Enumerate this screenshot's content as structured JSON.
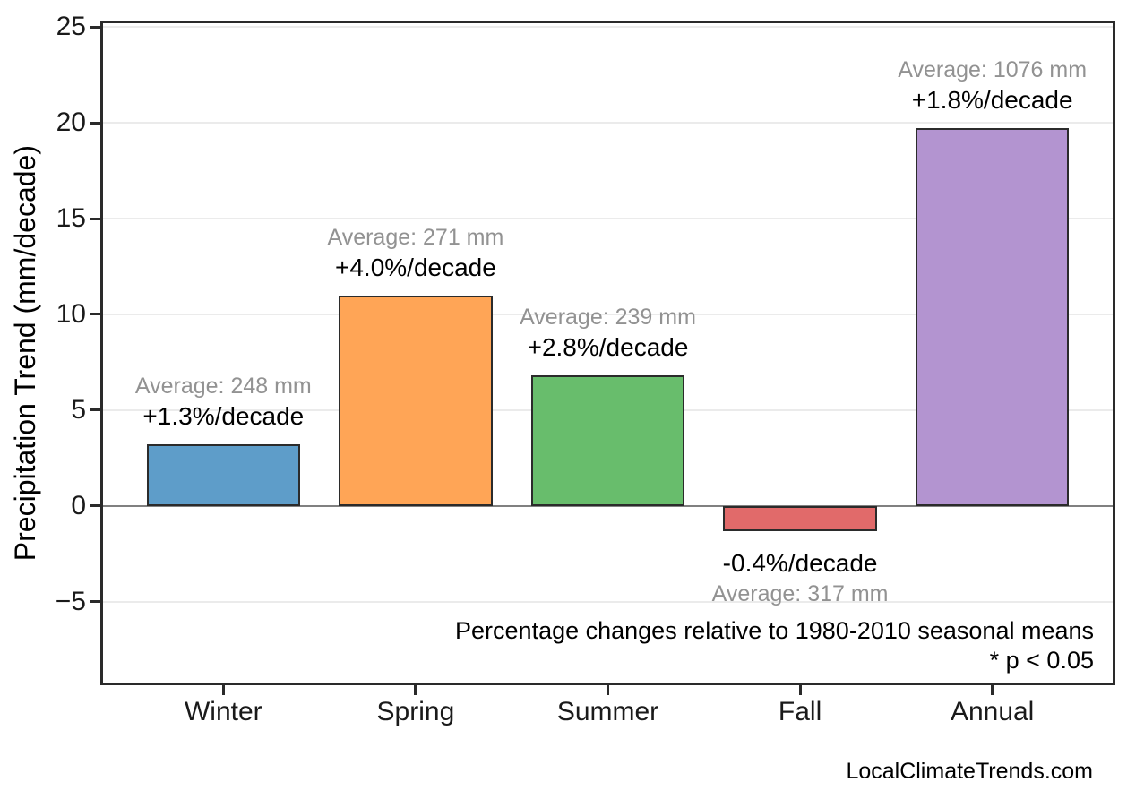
{
  "chart_data": {
    "type": "bar",
    "title": "",
    "xlabel": "",
    "ylabel": "Precipitation Trend (mm/decade)",
    "categories": [
      "Winter",
      "Spring",
      "Summer",
      "Fall",
      "Annual"
    ],
    "values": [
      3.2,
      11.0,
      6.8,
      -1.3,
      19.7
    ],
    "averages_mm": [
      248,
      271,
      239,
      317,
      1076
    ],
    "trend_pct_per_decade": [
      1.3,
      4.0,
      2.8,
      -0.4,
      1.8
    ],
    "avg_labels": [
      "Average: 248 mm",
      "Average: 271 mm",
      "Average: 239 mm",
      "Average: 317 mm",
      "Average: 1076 mm"
    ],
    "trend_labels": [
      "+1.3%/decade",
      "+4.0%/decade",
      "+2.8%/decade",
      "-0.4%/decade",
      "+1.8%/decade"
    ],
    "bar_colors": [
      "#5e9dc9",
      "#ffa556",
      "#68bd6c",
      "#e16a6a",
      "#b394d0"
    ],
    "bar_edge_color": "#2b2b2b",
    "yticks": [
      25,
      20,
      15,
      10,
      5,
      0,
      -5
    ],
    "ytick_labels": [
      "25",
      "20",
      "15",
      "10",
      "5",
      "0",
      "−5"
    ],
    "ylim": [
      -9.35,
      25.33
    ],
    "grid": true,
    "legend": "none",
    "grid_color": "#ebebeb",
    "zero_line_color": "#808080",
    "annotations": [
      "Percentage changes relative to 1980-2010 seasonal means",
      "* p < 0.05"
    ],
    "footer": "LocalClimateTrends.com",
    "text_colors": {
      "average": "#929292",
      "trend": "#000000"
    }
  }
}
